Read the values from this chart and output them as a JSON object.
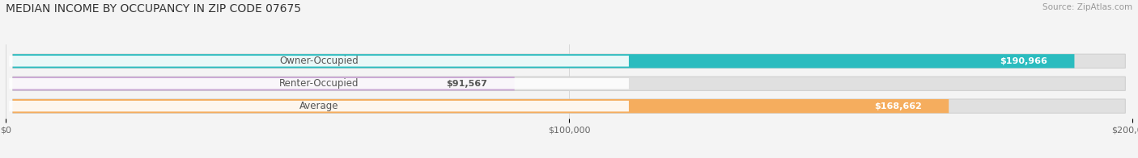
{
  "title": "MEDIAN INCOME BY OCCUPANCY IN ZIP CODE 07675",
  "source": "Source: ZipAtlas.com",
  "categories": [
    "Owner-Occupied",
    "Renter-Occupied",
    "Average"
  ],
  "values": [
    190966,
    91567,
    168662
  ],
  "bar_colors": [
    "#2bbcbf",
    "#c9a8d4",
    "#f5ad5e"
  ],
  "label_text_colors": [
    "#ffffff",
    "#555555",
    "#ffffff"
  ],
  "value_labels": [
    "$190,966",
    "$91,567",
    "$168,662"
  ],
  "xlim": [
    0,
    200000
  ],
  "xticks": [
    0,
    100000,
    200000
  ],
  "xtick_labels": [
    "$0",
    "$100,000",
    "$200,000"
  ],
  "bg_color": "#f4f4f4",
  "bar_bg_color": "#e0e0e0",
  "title_fontsize": 10,
  "label_fontsize": 8.5,
  "value_fontsize": 8,
  "source_fontsize": 7.5
}
